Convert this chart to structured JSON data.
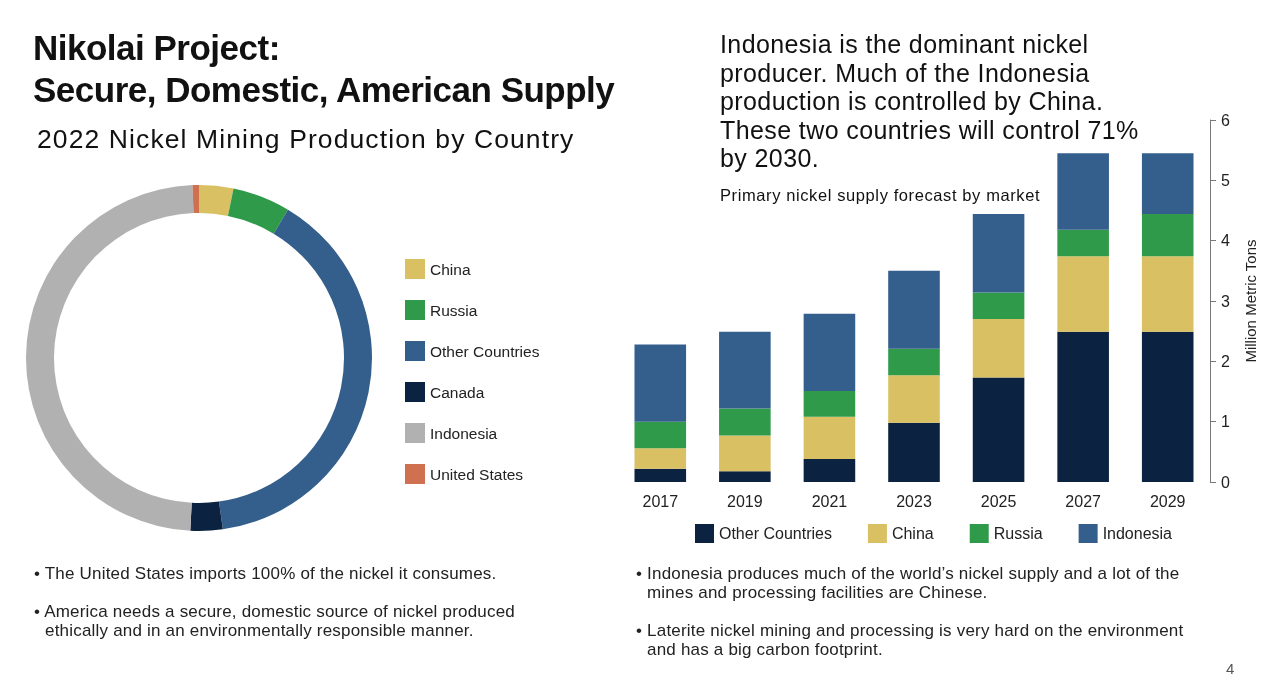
{
  "chart_data": [
    {
      "type": "donut",
      "title": "Nikolai Project:\nSecure, Domestic, American Supply",
      "subtitle": "2022 Nickel Mining Production by Country",
      "categories": [
        "China",
        "Russia",
        "Other Countries",
        "Canada",
        "Indonesia",
        "United States"
      ],
      "values": [
        3.2,
        5.4,
        39.2,
        3.0,
        48.6,
        0.6
      ],
      "colors": [
        "#d9c062",
        "#2f9a49",
        "#345e8b",
        "#0c2241",
        "#b1b1b1",
        "#cf7050"
      ],
      "legend": "right",
      "annotations": [
        "• The United States imports 100% of the nickel it consumes.",
        "• America needs a secure, domestic source of nickel produced ethically and in an environmentally responsible manner."
      ]
    },
    {
      "type": "bar",
      "title": "Indonesia is the dominant nickel\nproducer. Much of the Indonesia\nproduction is controlled by China.\nThese two countries will control 71%\nby 2030.",
      "subtitle": "Primary nickel supply forecast by market",
      "ylabel": "Million Metric Tons",
      "categories": [
        "2017",
        "2019",
        "2021",
        "2023",
        "2025",
        "2027",
        "2029"
      ],
      "stacked": true,
      "series": [
        {
          "name": "Other Countries",
          "color": "#0c2241",
          "values": [
            0.22,
            0.18,
            0.38,
            0.98,
            1.73,
            2.49,
            2.49
          ]
        },
        {
          "name": "China",
          "color": "#d9c062",
          "values": [
            0.34,
            0.59,
            0.7,
            0.79,
            0.97,
            1.25,
            1.25
          ]
        },
        {
          "name": "Russia",
          "color": "#2f9a49",
          "values": [
            0.44,
            0.45,
            0.43,
            0.44,
            0.44,
            0.44,
            0.7
          ]
        },
        {
          "name": "Indonesia",
          "color": "#345e8b",
          "values": [
            1.28,
            1.27,
            1.28,
            1.29,
            1.3,
            1.27,
            1.01
          ]
        }
      ],
      "ylim": [
        0,
        6
      ],
      "yticks": [
        0,
        1,
        2,
        3,
        4,
        5,
        6
      ],
      "legend": "bottom",
      "annotations": [
        "• Indonesia produces much of the world’s nickel supply and a lot of the mines and processing facilities are Chinese.",
        "• Laterite nickel mining and processing is very hard on the environment and has a big carbon footprint.",
        "4"
      ]
    }
  ]
}
